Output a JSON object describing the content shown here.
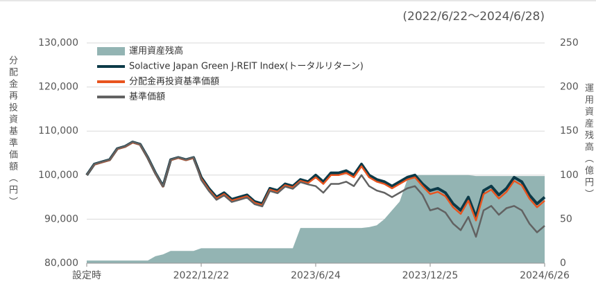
{
  "chart_data": {
    "type": "line",
    "title": "(2022/6/22〜2024/6/28)",
    "y_label": "分配金再投資基準価額（円）",
    "y2_label": "運用資産残高（億円）",
    "categories": [
      "設定時",
      null,
      null,
      null,
      null,
      null,
      null,
      null,
      null,
      null,
      null,
      null,
      null,
      null,
      null,
      "2022/12/22",
      null,
      null,
      null,
      null,
      null,
      null,
      null,
      null,
      null,
      null,
      null,
      null,
      null,
      null,
      "2023/6/24",
      null,
      null,
      null,
      null,
      null,
      null,
      null,
      null,
      null,
      null,
      null,
      null,
      null,
      null,
      "2023/12/25",
      null,
      null,
      null,
      null,
      null,
      null,
      null,
      null,
      null,
      null,
      null,
      null,
      null,
      null,
      "2024/6/26"
    ],
    "ylim": [
      80000,
      130000
    ],
    "yticks": [
      {
        "value": 80000,
        "label": "80,000"
      },
      {
        "value": 90000,
        "label": "90,000"
      },
      {
        "value": 100000,
        "label": "100,000"
      },
      {
        "value": 110000,
        "label": "110,000"
      },
      {
        "value": 120000,
        "label": "120,000"
      },
      {
        "value": 130000,
        "label": "130,000"
      }
    ],
    "y2lim": [
      0,
      250
    ],
    "y2ticks": [
      0,
      50,
      100,
      150,
      200,
      250
    ],
    "grid": true,
    "legend": "upper left",
    "series": [
      {
        "name": "運用資産残高",
        "type": "area",
        "axis": "y2",
        "color": "#93b4b3",
        "values": [
          3,
          3,
          3,
          3,
          3,
          3,
          3,
          3,
          3,
          8,
          10,
          14,
          14,
          14,
          14,
          17,
          17,
          17,
          17,
          17,
          17,
          17,
          17,
          17,
          17,
          17,
          17,
          17,
          40,
          40,
          40,
          40,
          40,
          40,
          40,
          40,
          40,
          41,
          43,
          50,
          60,
          70,
          95,
          100,
          100,
          100,
          100,
          100,
          100,
          100,
          100,
          99,
          99,
          99,
          99,
          99,
          99,
          99,
          99,
          99,
          99
        ]
      },
      {
        "name": "Solactive Japan Green J-REIT Index(トータルリターン)",
        "type": "line",
        "color": "#0c3a48",
        "values": [
          100000,
          102500,
          103000,
          103500,
          106000,
          106500,
          107500,
          107000,
          104000,
          100500,
          97500,
          103500,
          104000,
          103500,
          104000,
          99500,
          97000,
          95000,
          96000,
          94500,
          95000,
          95500,
          94000,
          93500,
          97000,
          96500,
          98000,
          97500,
          99000,
          98500,
          100000,
          98500,
          100500,
          100500,
          101000,
          100000,
          102500,
          100000,
          99000,
          98500,
          97500,
          98500,
          99500,
          100000,
          98000,
          96500,
          97000,
          96000,
          93500,
          92000,
          95000,
          90500,
          96500,
          97500,
          95500,
          97000,
          99500,
          98500,
          95500,
          93500,
          95000
        ]
      },
      {
        "name": "分配金再投資基準価額",
        "type": "line",
        "color": "#e8541e",
        "values": [
          100000,
          102400,
          102900,
          103400,
          105900,
          106400,
          107400,
          106900,
          103900,
          100400,
          97400,
          103400,
          103900,
          103400,
          103900,
          99200,
          96700,
          94700,
          95700,
          94200,
          94700,
          95200,
          93700,
          93200,
          96700,
          96200,
          97700,
          97200,
          98700,
          98200,
          99500,
          98000,
          100000,
          100000,
          100500,
          99500,
          102000,
          99500,
          98500,
          98000,
          97000,
          98000,
          99000,
          99500,
          97500,
          95700,
          96200,
          95200,
          92700,
          91200,
          94200,
          89700,
          95700,
          96700,
          94700,
          96200,
          98700,
          97700,
          94700,
          92700,
          94200
        ]
      },
      {
        "name": "基準価額",
        "type": "line",
        "color": "#626262",
        "values": [
          100000,
          102500,
          103000,
          103500,
          106000,
          106500,
          107500,
          107000,
          104000,
          100500,
          97500,
          103500,
          104000,
          103500,
          104000,
          98900,
          96400,
          94400,
          95400,
          93900,
          94400,
          94900,
          93400,
          92900,
          96400,
          95900,
          97400,
          96900,
          98400,
          97900,
          97500,
          96000,
          98000,
          98000,
          98500,
          97500,
          100000,
          97500,
          96500,
          96000,
          95000,
          96000,
          97000,
          97500,
          95500,
          92000,
          92500,
          91500,
          89000,
          87500,
          90500,
          86000,
          92000,
          93000,
          91000,
          92500,
          93000,
          92000,
          89000,
          87000,
          88500
        ]
      }
    ]
  }
}
